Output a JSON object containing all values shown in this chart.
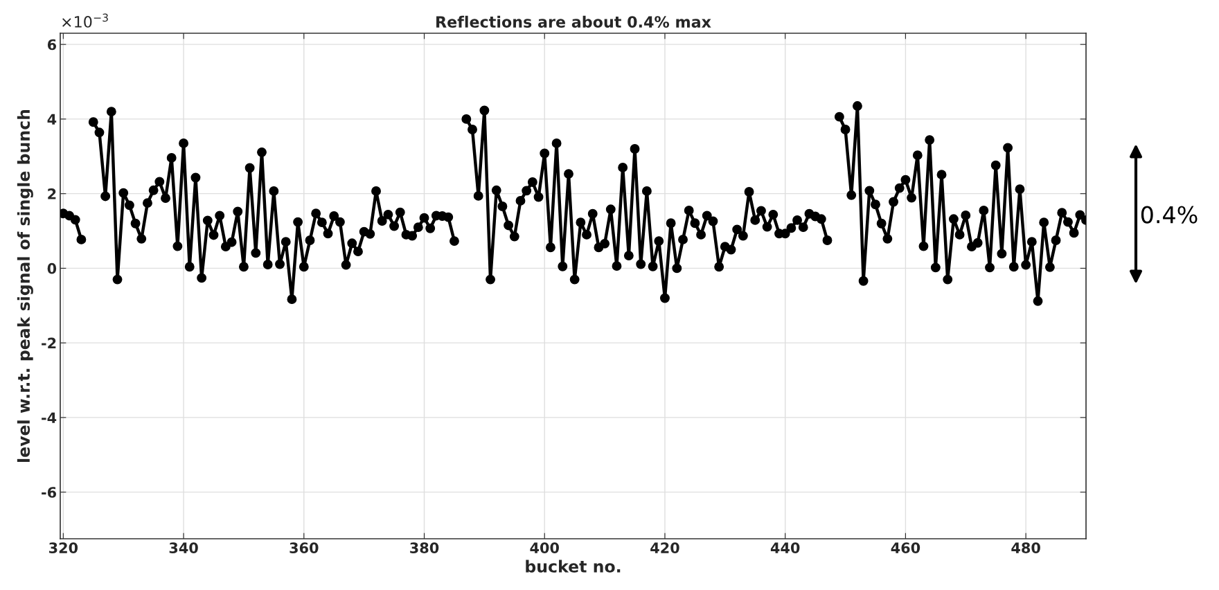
{
  "chart_data": {
    "type": "line",
    "title": "Reflections are about 0.4% max",
    "xlabel": "bucket no.",
    "ylabel": "level w.r.t. peak signal of single bunch",
    "x": [
      320,
      321,
      322,
      323,
      324,
      325,
      326,
      327,
      328,
      329,
      330,
      331,
      332,
      333,
      334,
      335,
      336,
      337,
      338,
      339,
      340,
      341,
      342,
      343,
      344,
      345,
      346,
      347,
      348,
      349,
      350,
      351,
      352,
      353,
      354,
      355,
      356,
      357,
      358,
      359,
      360,
      361,
      362,
      363,
      364,
      365,
      366,
      367,
      368,
      369,
      370,
      371,
      372,
      373,
      374,
      375,
      376,
      377,
      378,
      379,
      380,
      381,
      382,
      383,
      384,
      385,
      386,
      387,
      388,
      389,
      390,
      391,
      392,
      393,
      394,
      395,
      396,
      397,
      398,
      399,
      400,
      401,
      402,
      403,
      404,
      405,
      406,
      407,
      408,
      409,
      410,
      411,
      412,
      413,
      414,
      415,
      416,
      417,
      418,
      419,
      420,
      421,
      422,
      423,
      424,
      425,
      426,
      427,
      428,
      429,
      430,
      431,
      432,
      433,
      434,
      435,
      436,
      437,
      438,
      439,
      440,
      441,
      442,
      443,
      444,
      445,
      446,
      447,
      448,
      449,
      450,
      451,
      452,
      453,
      454,
      455,
      456,
      457,
      458,
      459,
      460,
      461,
      462,
      463,
      464,
      465,
      466,
      467,
      468,
      469,
      470,
      471,
      472,
      473,
      474,
      475,
      476,
      477,
      478,
      479,
      480,
      481,
      482,
      483,
      484,
      485,
      486,
      487,
      488,
      489,
      490
    ],
    "series": [
      {
        "color": "#000000",
        "values": [
          1.47,
          1.41,
          1.3,
          0.77,
          null,
          3.92,
          3.64,
          1.93,
          4.2,
          -0.3,
          2.02,
          1.69,
          1.2,
          0.79,
          1.75,
          2.09,
          2.32,
          1.88,
          2.96,
          0.59,
          3.35,
          0.04,
          2.43,
          -0.26,
          1.28,
          0.89,
          1.41,
          0.58,
          0.7,
          1.52,
          0.04,
          2.69,
          0.41,
          3.11,
          0.1,
          2.07,
          0.11,
          0.71,
          -0.83,
          1.24,
          0.04,
          0.75,
          1.47,
          1.23,
          0.93,
          1.4,
          1.24,
          0.09,
          0.67,
          0.45,
          0.98,
          0.92,
          2.07,
          1.27,
          1.44,
          1.13,
          1.5,
          0.9,
          0.87,
          1.1,
          1.35,
          1.07,
          1.41,
          1.4,
          1.37,
          0.73,
          null,
          4.0,
          3.72,
          1.94,
          4.23,
          -0.3,
          2.09,
          1.66,
          1.15,
          0.85,
          1.81,
          2.08,
          2.31,
          1.91,
          3.08,
          0.56,
          3.35,
          0.05,
          2.53,
          -0.3,
          1.23,
          0.9,
          1.46,
          0.56,
          0.66,
          1.58,
          0.06,
          2.7,
          0.34,
          3.2,
          0.11,
          2.07,
          0.05,
          0.73,
          -0.8,
          1.21,
          0.0,
          0.77,
          1.55,
          1.21,
          0.9,
          1.41,
          1.26,
          0.04,
          0.58,
          0.5,
          1.04,
          0.87,
          2.05,
          1.29,
          1.54,
          1.11,
          1.44,
          0.93,
          0.93,
          1.08,
          1.29,
          1.1,
          1.46,
          1.39,
          1.32,
          0.75,
          null,
          4.06,
          3.72,
          1.96,
          4.35,
          -0.34,
          2.08,
          1.71,
          1.2,
          0.79,
          1.78,
          2.15,
          2.37,
          1.89,
          3.03,
          0.59,
          3.44,
          0.02,
          2.51,
          -0.3,
          1.32,
          0.9,
          1.42,
          0.58,
          0.68,
          1.55,
          0.02,
          2.76,
          0.39,
          3.23,
          0.04,
          2.12,
          0.09,
          0.71,
          -0.88,
          1.23,
          0.03,
          0.75,
          1.49,
          1.24,
          0.95,
          1.43,
          1.29
        ]
      }
    ],
    "xlim": [
      319.5,
      490
    ],
    "xticks": [
      320,
      340,
      360,
      380,
      400,
      420,
      440,
      460,
      480
    ],
    "ylim": [
      -7.25,
      6.3
    ],
    "yticks": [
      -6,
      -4,
      -2,
      0,
      2,
      4,
      6
    ],
    "grid": true,
    "marker": "circle",
    "line_style": "solid",
    "annotations": [
      "×10$^{−3}$",
      "0.4%"
    ]
  }
}
